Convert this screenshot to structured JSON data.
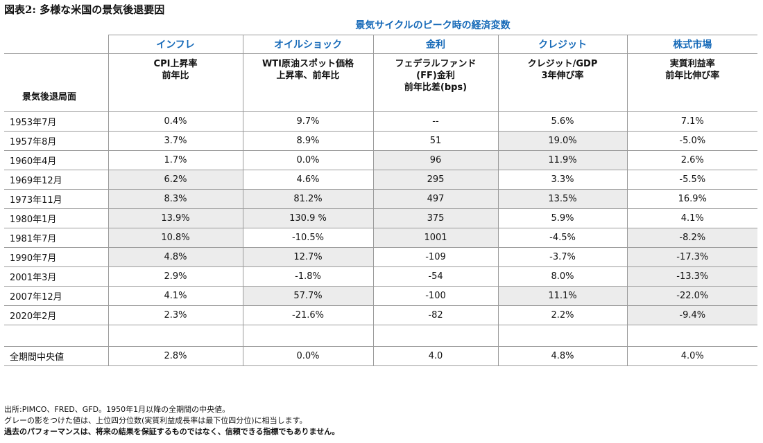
{
  "title": "図表2: 多様な米国の景気後退要因",
  "chart_data": {
    "type": "table",
    "supertitle": "景気サイクルのピーク時の経済変数",
    "row_header": "景気後退局面",
    "categories": [
      "インフレ",
      "オイルショック",
      "金利",
      "クレジット",
      "株式市場"
    ],
    "columns": [
      "CPI上昇率\n前年比",
      "WTI原油スポット価格\n上昇率、前年比",
      "フェデラルファンド\n(FF)金利\n前年比差(bps)",
      "クレジット/GDP\n3年伸び率",
      "実質利益率\n前年比伸び率"
    ],
    "rows": [
      {
        "label": "1953年7月",
        "values": [
          "0.4%",
          "9.7%",
          "--",
          "5.6%",
          "7.1%"
        ],
        "shaded": [
          false,
          false,
          false,
          false,
          false
        ]
      },
      {
        "label": "1957年8月",
        "values": [
          "3.7%",
          "8.9%",
          "51",
          "19.0%",
          "-5.0%"
        ],
        "shaded": [
          false,
          false,
          false,
          true,
          false
        ]
      },
      {
        "label": "1960年4月",
        "values": [
          "1.7%",
          "0.0%",
          "96",
          "11.9%",
          "2.6%"
        ],
        "shaded": [
          false,
          false,
          true,
          true,
          false
        ]
      },
      {
        "label": "1969年12月",
        "values": [
          "6.2%",
          "4.6%",
          "295",
          "3.3%",
          "-5.5%"
        ],
        "shaded": [
          true,
          false,
          true,
          false,
          false
        ]
      },
      {
        "label": "1973年11月",
        "values": [
          "8.3%",
          "81.2%",
          "497",
          "13.5%",
          "16.9%"
        ],
        "shaded": [
          true,
          true,
          true,
          true,
          false
        ]
      },
      {
        "label": "1980年1月",
        "values": [
          "13.9%",
          "130.9 %",
          "375",
          "5.9%",
          "4.1%"
        ],
        "shaded": [
          true,
          true,
          true,
          false,
          false
        ]
      },
      {
        "label": "1981年7月",
        "values": [
          "10.8%",
          "-10.5%",
          "1001",
          "-4.5%",
          "-8.2%"
        ],
        "shaded": [
          true,
          false,
          true,
          false,
          true
        ]
      },
      {
        "label": "1990年7月",
        "values": [
          "4.8%",
          "12.7%",
          "-109",
          "-3.7%",
          "-17.3%"
        ],
        "shaded": [
          true,
          true,
          false,
          false,
          true
        ]
      },
      {
        "label": "2001年3月",
        "values": [
          "2.9%",
          "-1.8%",
          "-54",
          "8.0%",
          "-13.3%"
        ],
        "shaded": [
          false,
          false,
          false,
          false,
          true
        ]
      },
      {
        "label": "2007年12月",
        "values": [
          "4.1%",
          "57.7%",
          "-100",
          "11.1%",
          "-22.0%"
        ],
        "shaded": [
          false,
          true,
          false,
          true,
          true
        ]
      },
      {
        "label": "2020年2月",
        "values": [
          "2.3%",
          "-21.6%",
          "-82",
          "2.2%",
          "-9.4%"
        ],
        "shaded": [
          false,
          false,
          false,
          false,
          true
        ]
      }
    ],
    "median": {
      "label": "全期間中央値",
      "values": [
        "2.8%",
        "0.0%",
        "4.0",
        "4.8%",
        "4.0%"
      ]
    },
    "highlight_color": "#ececec",
    "accent_color": "#1569b8"
  },
  "notes": {
    "line1": "出所:PIMCO、FRED、GFD。1950年1月以降の全期間の中央値。",
    "line2": "グレーの影をつけた値は、上位四分位数(実質利益成長率は最下位四分位)に相当します。",
    "line3": "過去のパフォーマンスは、将来の結果を保証するものではなく、信頼できる指標でもありません。"
  }
}
